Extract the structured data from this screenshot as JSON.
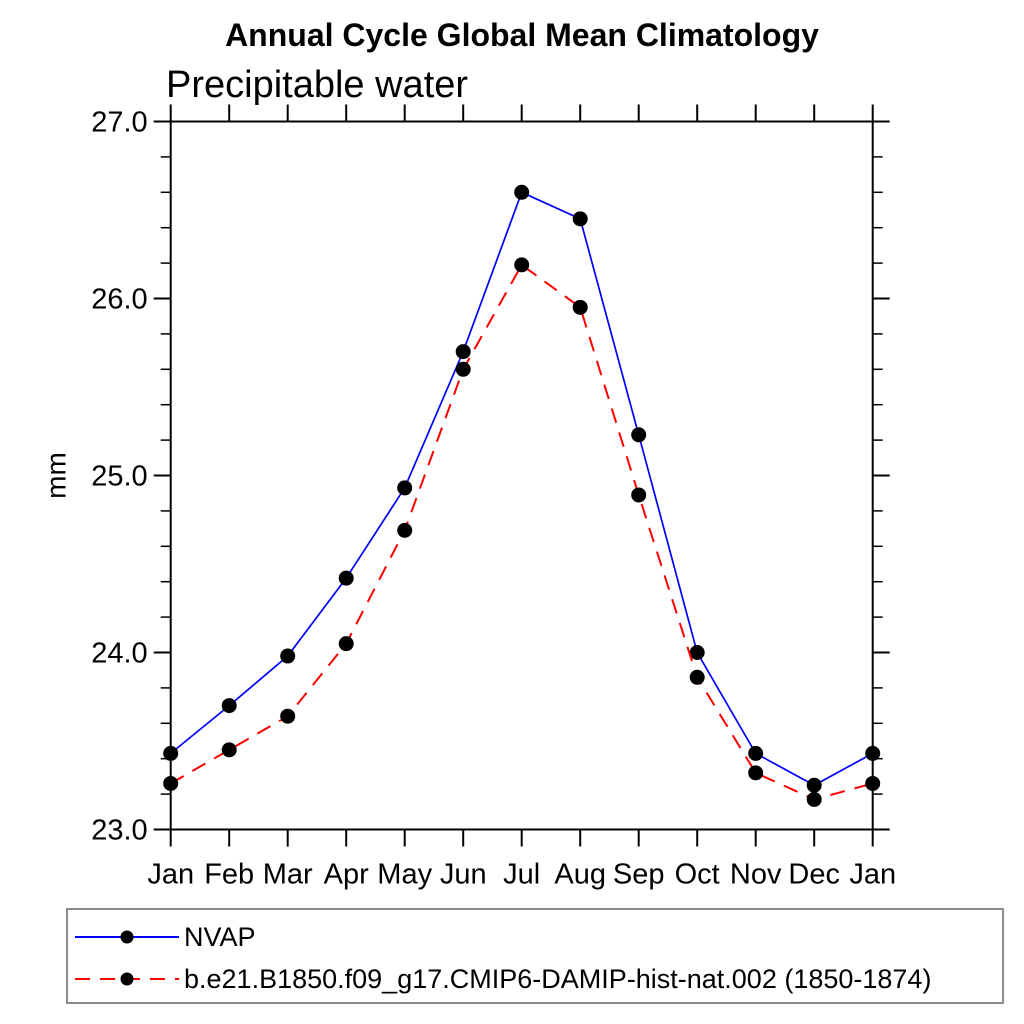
{
  "title": "Annual Cycle Global Mean Climatology",
  "chart_data": {
    "type": "line",
    "title": "Annual Cycle Global Mean Climatology",
    "subtitle": "Precipitable water",
    "xlabel": "",
    "ylabel": "mm",
    "x_tick_labels": [
      "Jan",
      "Feb",
      "Mar",
      "Apr",
      "May",
      "Jun",
      "Jul",
      "Aug",
      "Sep",
      "Oct",
      "Nov",
      "Dec",
      "Jan"
    ],
    "ylim": [
      23.0,
      27.0
    ],
    "y_tick_labels": [
      "23.0",
      "24.0",
      "25.0",
      "26.0",
      "27.0"
    ],
    "y_major_step": 1.0,
    "y_minor_step": 0.2,
    "grid": false,
    "legend_position": "bottom",
    "axis_color": "#000000",
    "marker_shape": "circle",
    "series": [
      {
        "name": "NVAP",
        "color": "#0000ff",
        "line_style": "solid",
        "marker_color": "#000000",
        "values": [
          23.43,
          23.7,
          23.98,
          24.42,
          24.93,
          25.7,
          26.6,
          26.45,
          25.23,
          24.0,
          23.43,
          23.25,
          23.43
        ]
      },
      {
        "name": "b.e21.B1850.f09_g17.CMIP6-DAMIP-hist-nat.002 (1850-1874)",
        "color": "#ff0000",
        "line_style": "dashed",
        "marker_color": "#000000",
        "values": [
          23.26,
          23.45,
          23.64,
          24.05,
          24.69,
          25.6,
          26.19,
          25.95,
          24.89,
          23.86,
          23.32,
          23.17,
          23.26
        ]
      }
    ]
  }
}
